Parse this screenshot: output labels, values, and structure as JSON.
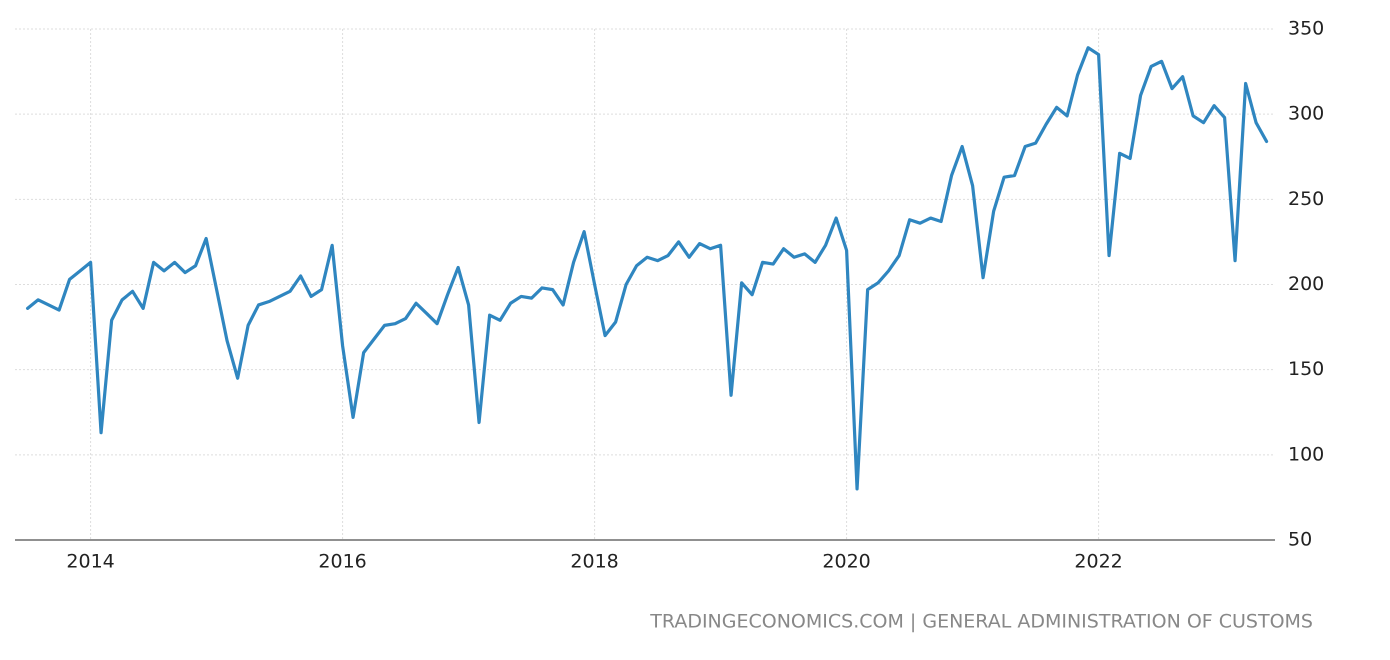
{
  "chart_data": {
    "type": "line",
    "source": "TRADINGECONOMICS.COM | GENERAL ADMINISTRATION OF CUSTOMS",
    "x": [
      2013.5,
      2013.583,
      2013.667,
      2013.75,
      2013.833,
      2013.917,
      2014,
      2014.083,
      2014.167,
      2014.25,
      2014.333,
      2014.417,
      2014.5,
      2014.583,
      2014.667,
      2014.75,
      2014.833,
      2014.917,
      2015,
      2015.083,
      2015.167,
      2015.25,
      2015.333,
      2015.417,
      2015.5,
      2015.583,
      2015.667,
      2015.75,
      2015.833,
      2015.917,
      2016,
      2016.083,
      2016.167,
      2016.25,
      2016.333,
      2016.417,
      2016.5,
      2016.583,
      2016.667,
      2016.75,
      2016.833,
      2016.917,
      2017,
      2017.083,
      2017.167,
      2017.25,
      2017.333,
      2017.417,
      2017.5,
      2017.583,
      2017.667,
      2017.75,
      2017.833,
      2017.917,
      2018,
      2018.083,
      2018.167,
      2018.25,
      2018.333,
      2018.417,
      2018.5,
      2018.583,
      2018.667,
      2018.75,
      2018.833,
      2018.917,
      2019,
      2019.083,
      2019.167,
      2019.25,
      2019.333,
      2019.417,
      2019.5,
      2019.583,
      2019.667,
      2019.75,
      2019.833,
      2019.917,
      2020,
      2020.083,
      2020.167,
      2020.25,
      2020.333,
      2020.417,
      2020.5,
      2020.583,
      2020.667,
      2020.75,
      2020.833,
      2020.917,
      2021,
      2021.083,
      2021.167,
      2021.25,
      2021.333,
      2021.417,
      2021.5,
      2021.583,
      2021.667,
      2021.75,
      2021.833,
      2021.917,
      2022,
      2022.083,
      2022.167,
      2022.25,
      2022.333,
      2022.417,
      2022.5,
      2022.583,
      2022.667,
      2022.75,
      2022.833,
      2022.917,
      2023,
      2023.083,
      2023.167,
      2023.25,
      2023.333
    ],
    "series": [
      {
        "color": "#2f86c0",
        "values": [
          186,
          191,
          188,
          185,
          203,
          208,
          213,
          113,
          179,
          191,
          196,
          186,
          213,
          208,
          213,
          207,
          211,
          227,
          197,
          167,
          145,
          176,
          188,
          190,
          193,
          196,
          205,
          193,
          197,
          223,
          164,
          122,
          160,
          168,
          176,
          177,
          180,
          189,
          183,
          177,
          194,
          210,
          188,
          119,
          182,
          179,
          189,
          193,
          192,
          198,
          197,
          188,
          213,
          231,
          200,
          170,
          178,
          200,
          211,
          216,
          214,
          217,
          225,
          216,
          224,
          221,
          223,
          135,
          201,
          194,
          213,
          212,
          221,
          216,
          218,
          213,
          223,
          239,
          220,
          80,
          197,
          201,
          208,
          217,
          238,
          236,
          239,
          237,
          264,
          281,
          258,
          204,
          243,
          263,
          264,
          281,
          283,
          294,
          304,
          299,
          323,
          339,
          335,
          217,
          277,
          274,
          311,
          328,
          331,
          315,
          322,
          299,
          295,
          305,
          298,
          214,
          318,
          295,
          284
        ]
      }
    ],
    "xlim": [
      2013.4,
      2023.4
    ],
    "xticks": [
      2014,
      2016,
      2018,
      2020,
      2022
    ],
    "ylim": [
      50,
      350
    ],
    "yticks": [
      50,
      100,
      150,
      200,
      250,
      300,
      350
    ],
    "grid": true
  }
}
